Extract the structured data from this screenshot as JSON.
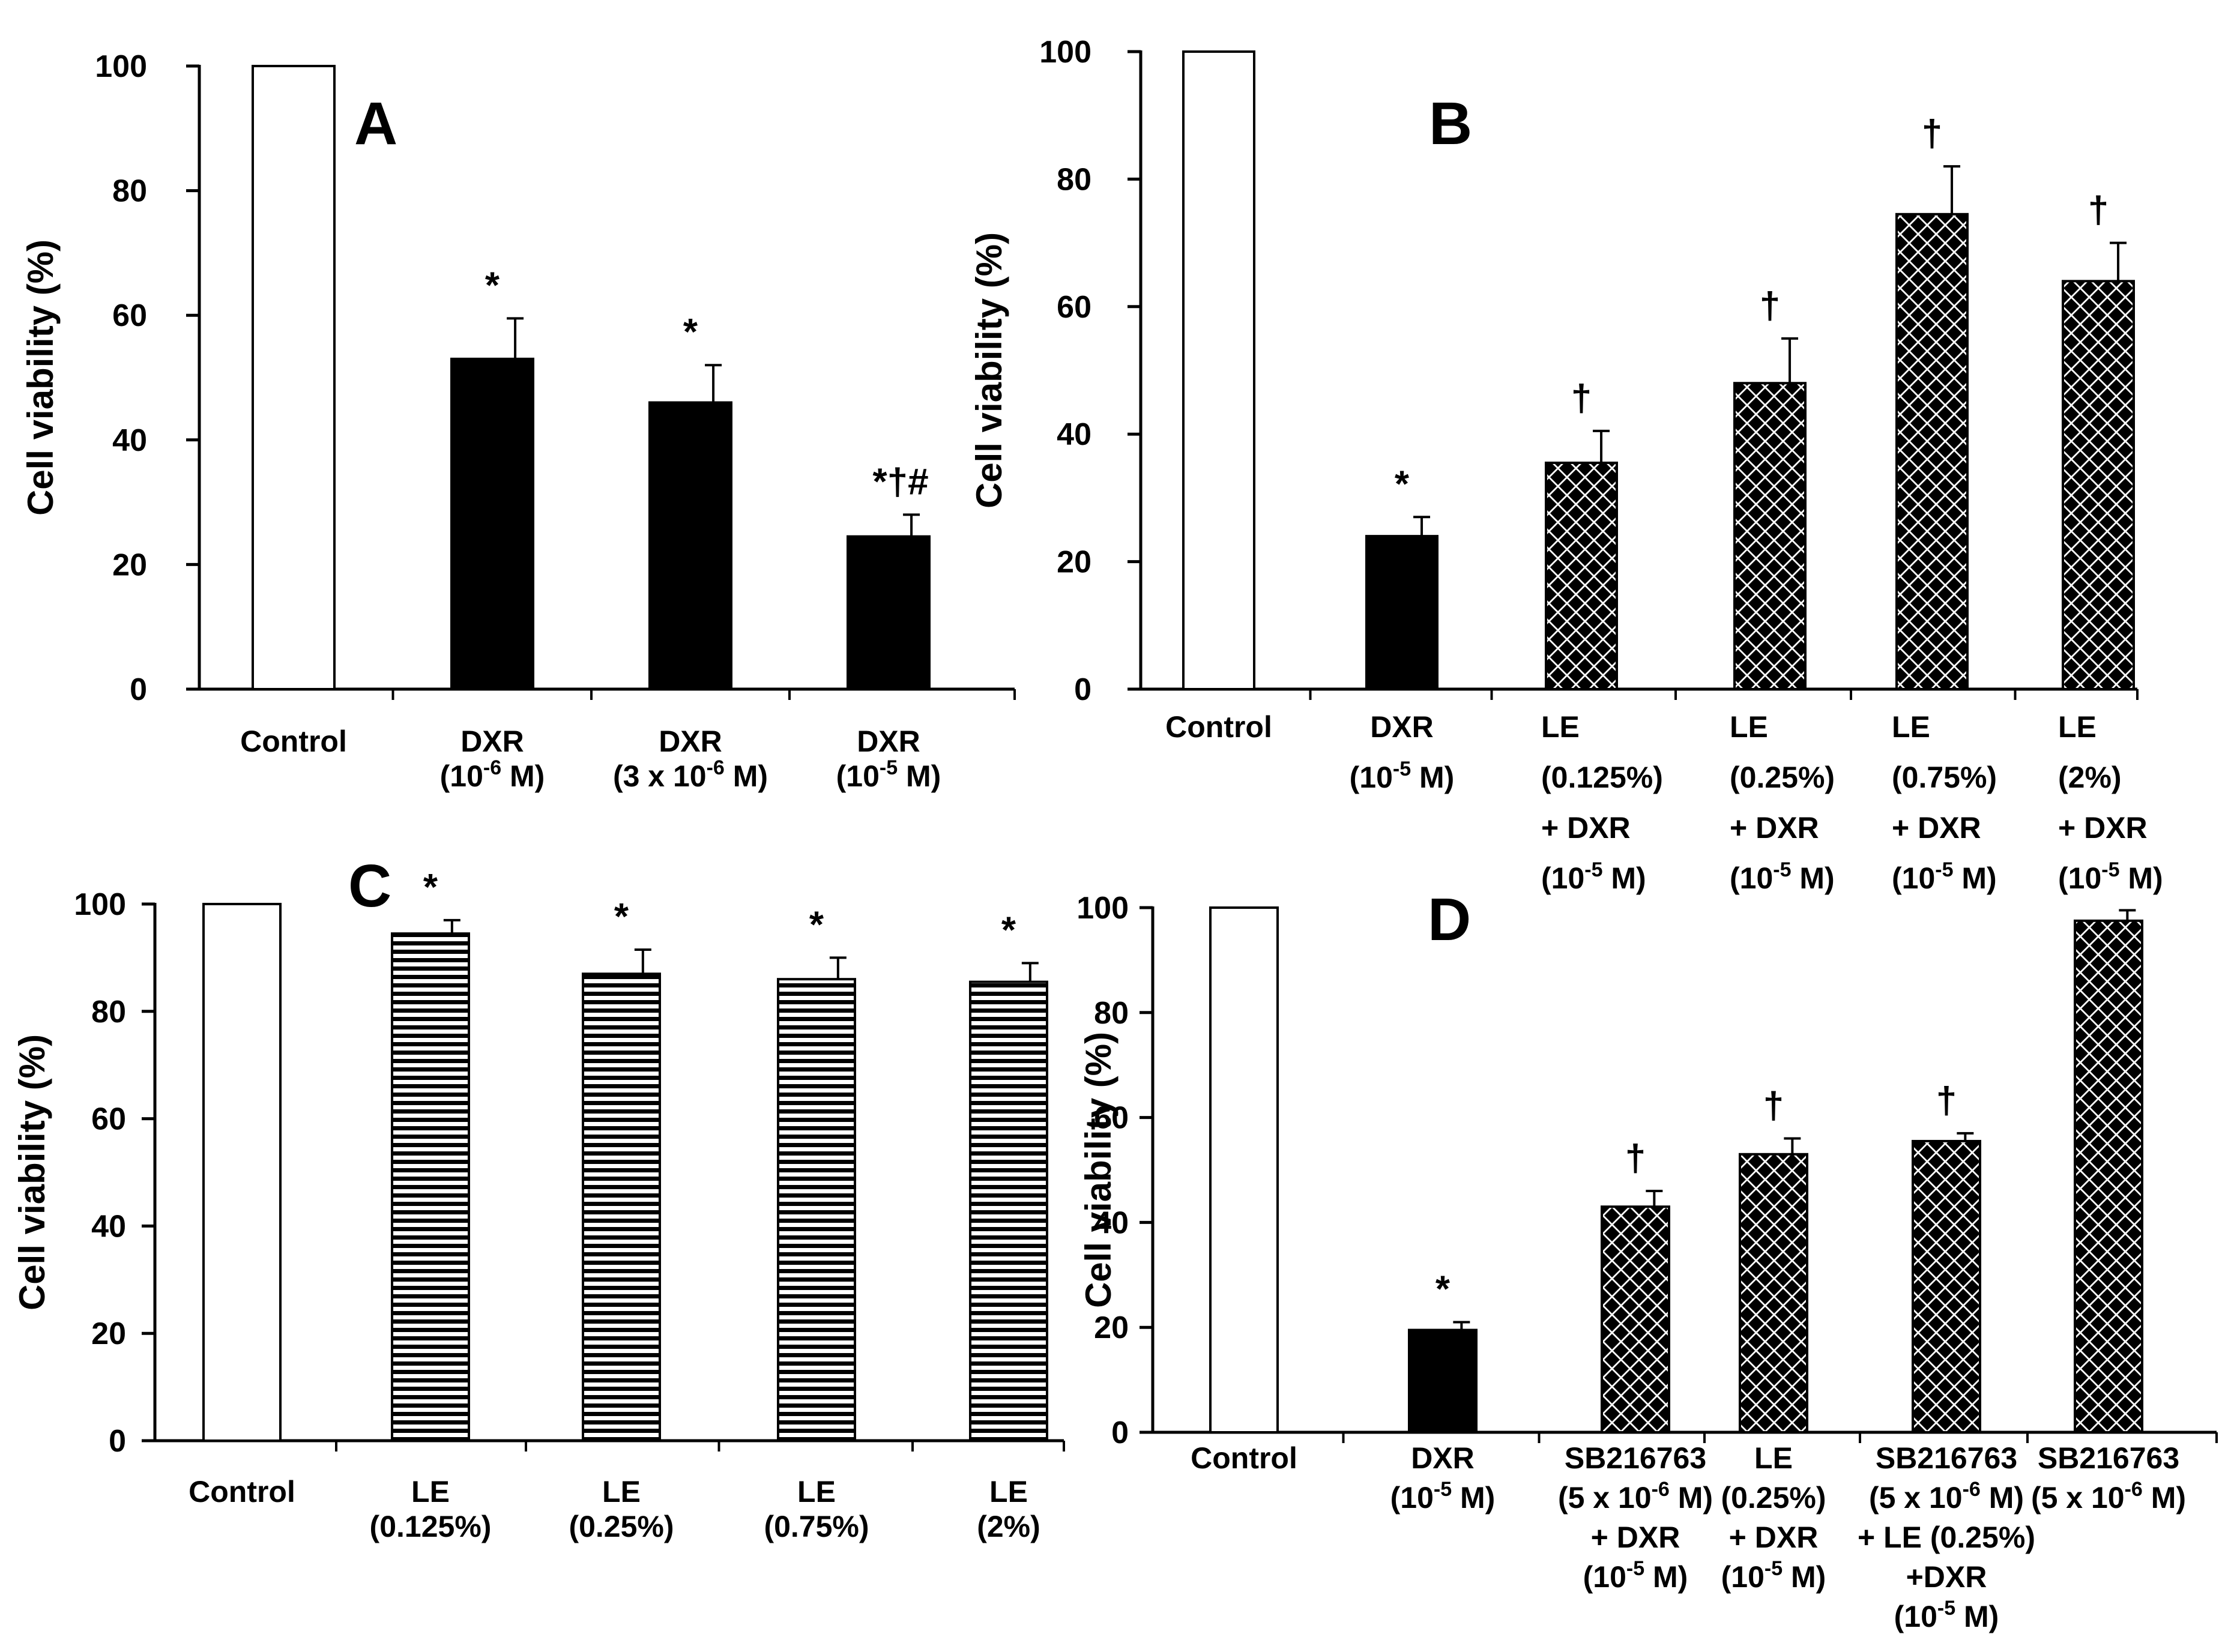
{
  "chart_data": [
    {
      "type": "bar",
      "panel": "A",
      "ylabel": "Cell viability (%)",
      "ylim": [
        0,
        100
      ],
      "yticks": [
        "0",
        "20",
        "40",
        "60",
        "80",
        "100"
      ],
      "categories": [
        [
          "Control"
        ],
        [
          "DXR",
          "(10-6 M)"
        ],
        [
          "DXR",
          "(3 x 10-6 M)"
        ],
        [
          "DXR",
          "(10-5 M)"
        ]
      ],
      "values": [
        100,
        53,
        46,
        24.5
      ],
      "errors": [
        0,
        6.5,
        6,
        3.5
      ],
      "patterns": [
        "white",
        "black",
        "black",
        "black"
      ],
      "significance": [
        "",
        "*",
        "*",
        "*†#"
      ]
    },
    {
      "type": "bar",
      "panel": "B",
      "ylabel": "Cell viability (%)",
      "ylim": [
        0,
        100
      ],
      "yticks": [
        "0",
        "20",
        "40",
        "60",
        "80",
        "100"
      ],
      "categories": [
        [
          "Control"
        ],
        [
          "DXR",
          "(10-5 M)"
        ],
        [
          "LE",
          "(0.125%)",
          "+ DXR",
          "(10-5 M)"
        ],
        [
          "LE",
          "(0.25%)",
          "+ DXR",
          "(10-5 M)"
        ],
        [
          "LE",
          "(0.75%)",
          "+ DXR",
          "(10-5 M)"
        ],
        [
          "LE",
          "(2%)",
          "+ DXR",
          "(10-5 M)"
        ]
      ],
      "values": [
        100,
        24,
        35.5,
        48,
        74.5,
        64
      ],
      "errors": [
        0,
        3,
        5,
        7,
        7.5,
        6
      ],
      "patterns": [
        "white",
        "black",
        "diamond",
        "diamond",
        "diamond",
        "diamond"
      ],
      "significance": [
        "",
        "*",
        "†",
        "†",
        "†",
        "†"
      ]
    },
    {
      "type": "bar",
      "panel": "C",
      "ylabel": "Cell viability (%)",
      "ylim": [
        0,
        100
      ],
      "yticks": [
        "0",
        "20",
        "40",
        "60",
        "80",
        "100"
      ],
      "categories": [
        [
          "Control"
        ],
        [
          "LE",
          "(0.125%)"
        ],
        [
          "LE",
          "(0.25%)"
        ],
        [
          "LE",
          "(0.75%)"
        ],
        [
          "LE",
          "(2%)"
        ]
      ],
      "values": [
        100,
        94.5,
        87,
        86,
        85.5
      ],
      "errors": [
        0,
        2.5,
        4.5,
        4,
        3.5
      ],
      "patterns": [
        "white",
        "hstripe",
        "hstripe",
        "hstripe",
        "hstripe"
      ],
      "significance": [
        "",
        "*",
        "*",
        "*",
        "*"
      ]
    },
    {
      "type": "bar",
      "panel": "D",
      "ylabel": "Cell viability (%)",
      "ylim": [
        0,
        100
      ],
      "yticks": [
        "0",
        "20",
        "40",
        "60",
        "80",
        "100"
      ],
      "categories": [
        [
          "Control"
        ],
        [
          "DXR",
          "(10-5 M)"
        ],
        [
          "SB216763",
          "(5 x 10-6 M)",
          "+ DXR",
          "(10-5 M)"
        ],
        [
          "LE",
          "(0.25%)",
          "+ DXR",
          "(10-5 M)"
        ],
        [
          "SB216763",
          "(5 x 10-6 M)",
          "+ LE (0.25%)",
          "+DXR",
          "(10-5 M)"
        ],
        [
          "SB216763",
          "(5 x 10-6 M)"
        ]
      ],
      "values": [
        100,
        19.5,
        43,
        53,
        55.5,
        97.5
      ],
      "errors": [
        0,
        1.5,
        3,
        3,
        1.5,
        2
      ],
      "patterns": [
        "white",
        "black",
        "diamond",
        "diamond",
        "diamond",
        "diamond"
      ],
      "significance": [
        "",
        "*",
        "†",
        "†",
        "†",
        ""
      ]
    }
  ]
}
